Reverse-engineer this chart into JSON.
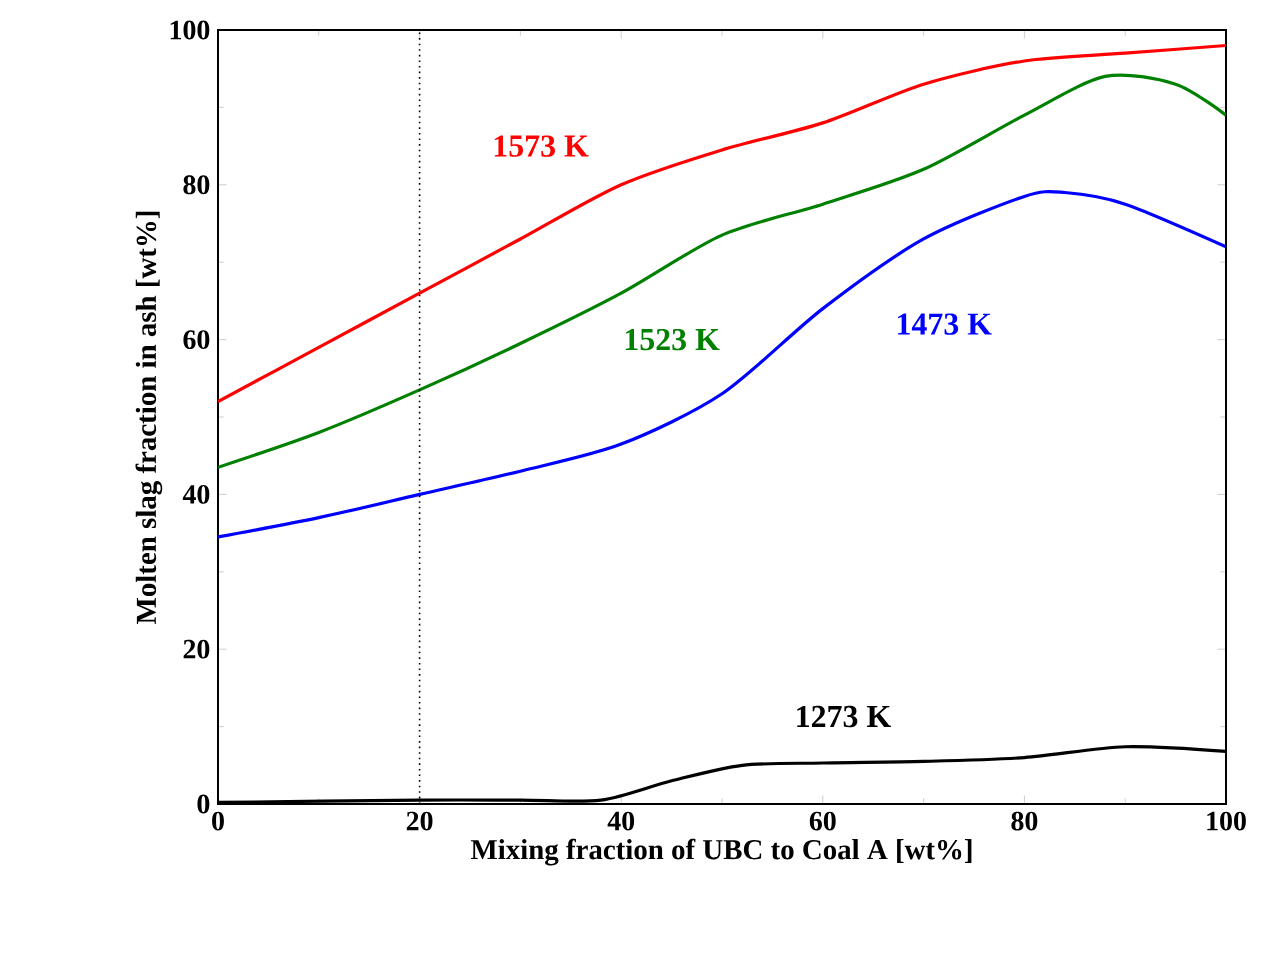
{
  "chart_data": {
    "type": "line",
    "xlabel": "Mixing fraction of UBC to Coal A [wt%]",
    "ylabel": "Molten slag fraction in ash [wt%]",
    "xlim": [
      0,
      100
    ],
    "ylim": [
      0,
      100
    ],
    "xticks": [
      0,
      20,
      40,
      60,
      80,
      100
    ],
    "yticks": [
      0,
      20,
      40,
      60,
      80,
      100
    ],
    "marker": "none",
    "line_style": "solid",
    "series": [
      {
        "name": "1573 K",
        "color": "#ff0000",
        "x": [
          0,
          10,
          20,
          30,
          40,
          50,
          60,
          70,
          80,
          90,
          100
        ],
        "values": [
          52,
          59,
          66,
          73,
          80,
          84.5,
          88,
          93,
          96,
          97,
          98
        ]
      },
      {
        "name": "1523 K",
        "color": "#008000",
        "x": [
          0,
          10,
          20,
          30,
          40,
          50,
          60,
          70,
          80,
          88,
          95,
          100
        ],
        "values": [
          43.5,
          48,
          53.5,
          59.5,
          66,
          73.5,
          77.5,
          82,
          89,
          94,
          93,
          89
        ]
      },
      {
        "name": "1473 K",
        "color": "#0000ff",
        "x": [
          0,
          10,
          20,
          30,
          40,
          50,
          60,
          70,
          80,
          84,
          90,
          100
        ],
        "values": [
          34.5,
          37,
          40,
          43,
          46.5,
          53,
          64,
          73,
          78.5,
          79,
          77.5,
          72
        ]
      },
      {
        "name": "1273 K",
        "color": "#000000",
        "x": [
          0,
          20,
          30,
          38,
          45,
          52,
          60,
          70,
          80,
          90,
          100
        ],
        "values": [
          0.2,
          0.5,
          0.5,
          0.5,
          3,
          5,
          5.3,
          5.5,
          6,
          7.4,
          6.8
        ]
      }
    ],
    "ref_lines": [
      {
        "axis": "x",
        "value": 20,
        "color": "#000000",
        "line_style": "dotted"
      }
    ]
  }
}
